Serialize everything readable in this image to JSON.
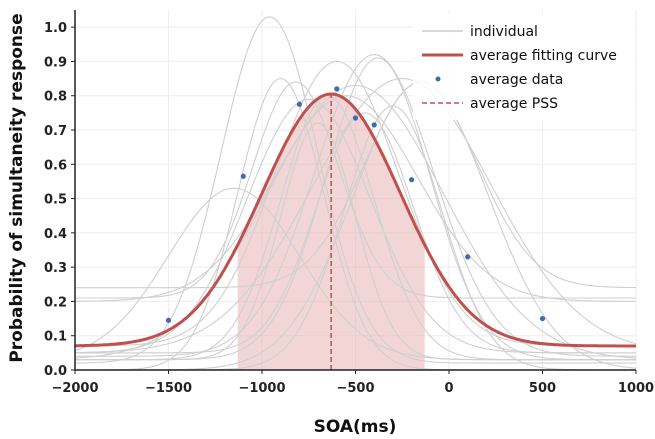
{
  "chart_data": {
    "type": "line",
    "xlabel": "SOA(ms)",
    "ylabel": "Probability of simultaneity response",
    "xlim": [
      -2000,
      1000
    ],
    "ylim": [
      0,
      1.05
    ],
    "xticks": [
      -2000,
      -1500,
      -1000,
      -500,
      0,
      500,
      1000
    ],
    "yticks": [
      0.0,
      0.1,
      0.2,
      0.3,
      0.4,
      0.5,
      0.6,
      0.7,
      0.8,
      0.9,
      1.0
    ],
    "xtick_labels": [
      "−2000",
      "−1500",
      "−1000",
      "−500",
      "0",
      "500",
      "1000"
    ],
    "ytick_labels": [
      "0.0",
      "0.1",
      "0.2",
      "0.3",
      "0.4",
      "0.5",
      "0.6",
      "0.7",
      "0.8",
      "0.9",
      "1.0"
    ],
    "grid": true,
    "legend_position": "top-right",
    "legend": [
      {
        "label": "individual",
        "kind": "line",
        "color": "#cccccc"
      },
      {
        "label": "average fitting curve",
        "kind": "thick-line",
        "color": "#c0504d"
      },
      {
        "label": "average data",
        "kind": "point",
        "color": "#3a6db5"
      },
      {
        "label": "average PSS",
        "kind": "dashed-line",
        "color": "#c0504d"
      }
    ],
    "average_curve": {
      "name": "average fitting curve",
      "model": "gaussian",
      "peak_x": -630,
      "amplitude": 0.735,
      "baseline": 0.07,
      "sigma": 370,
      "color": "#c0504d"
    },
    "pss": {
      "name": "average PSS",
      "x": -630,
      "color": "#c0504d"
    },
    "shaded_interval": {
      "x": [
        -1130,
        -130
      ],
      "color": "#e8b4b4"
    },
    "average_data": {
      "name": "average data",
      "color": "#3a6db5",
      "x": [
        -1500,
        -1100,
        -800,
        -600,
        -500,
        -400,
        -200,
        100,
        500
      ],
      "y": [
        0.145,
        0.565,
        0.775,
        0.82,
        0.735,
        0.715,
        0.555,
        0.33,
        0.15
      ]
    },
    "individual_curves": [
      {
        "peak_x": -960,
        "amplitude": 1.01,
        "baseline": 0.02,
        "sigma": 260
      },
      {
        "peak_x": -700,
        "amplitude": 0.69,
        "baseline": 0.03,
        "sigma": 200
      },
      {
        "peak_x": -820,
        "amplitude": 0.63,
        "baseline": 0.21,
        "sigma": 230
      },
      {
        "peak_x": -600,
        "amplitude": 0.83,
        "baseline": 0.07,
        "sigma": 330
      },
      {
        "peak_x": -400,
        "amplitude": 0.88,
        "baseline": 0.04,
        "sigma": 320
      },
      {
        "peak_x": -380,
        "amplitude": 0.88,
        "baseline": 0.03,
        "sigma": 280
      },
      {
        "peak_x": -250,
        "amplitude": 0.8,
        "baseline": 0.05,
        "sigma": 480
      },
      {
        "peak_x": -150,
        "amplitude": 0.84,
        "baseline": 0.0,
        "sigma": 360
      },
      {
        "peak_x": -500,
        "amplitude": 0.8,
        "baseline": 0.03,
        "sigma": 470
      },
      {
        "peak_x": -900,
        "amplitude": 0.85,
        "baseline": 0.0,
        "sigma": 230
      },
      {
        "peak_x": -650,
        "amplitude": 0.77,
        "baseline": 0.03,
        "sigma": 250
      },
      {
        "peak_x": -550,
        "amplitude": 0.6,
        "baseline": 0.2,
        "sigma": 380
      },
      {
        "peak_x": -300,
        "amplitude": 0.77,
        "baseline": 0.0,
        "sigma": 260
      },
      {
        "peak_x": -750,
        "amplitude": 0.74,
        "baseline": 0.05,
        "sigma": 330
      },
      {
        "peak_x": -450,
        "amplitude": 0.7,
        "baseline": 0.05,
        "sigma": 260
      },
      {
        "peak_x": -150,
        "amplitude": 0.6,
        "baseline": 0.24,
        "sigma": 300
      },
      {
        "peak_x": -1150,
        "amplitude": 0.5,
        "baseline": 0.03,
        "sigma": 350
      }
    ]
  }
}
